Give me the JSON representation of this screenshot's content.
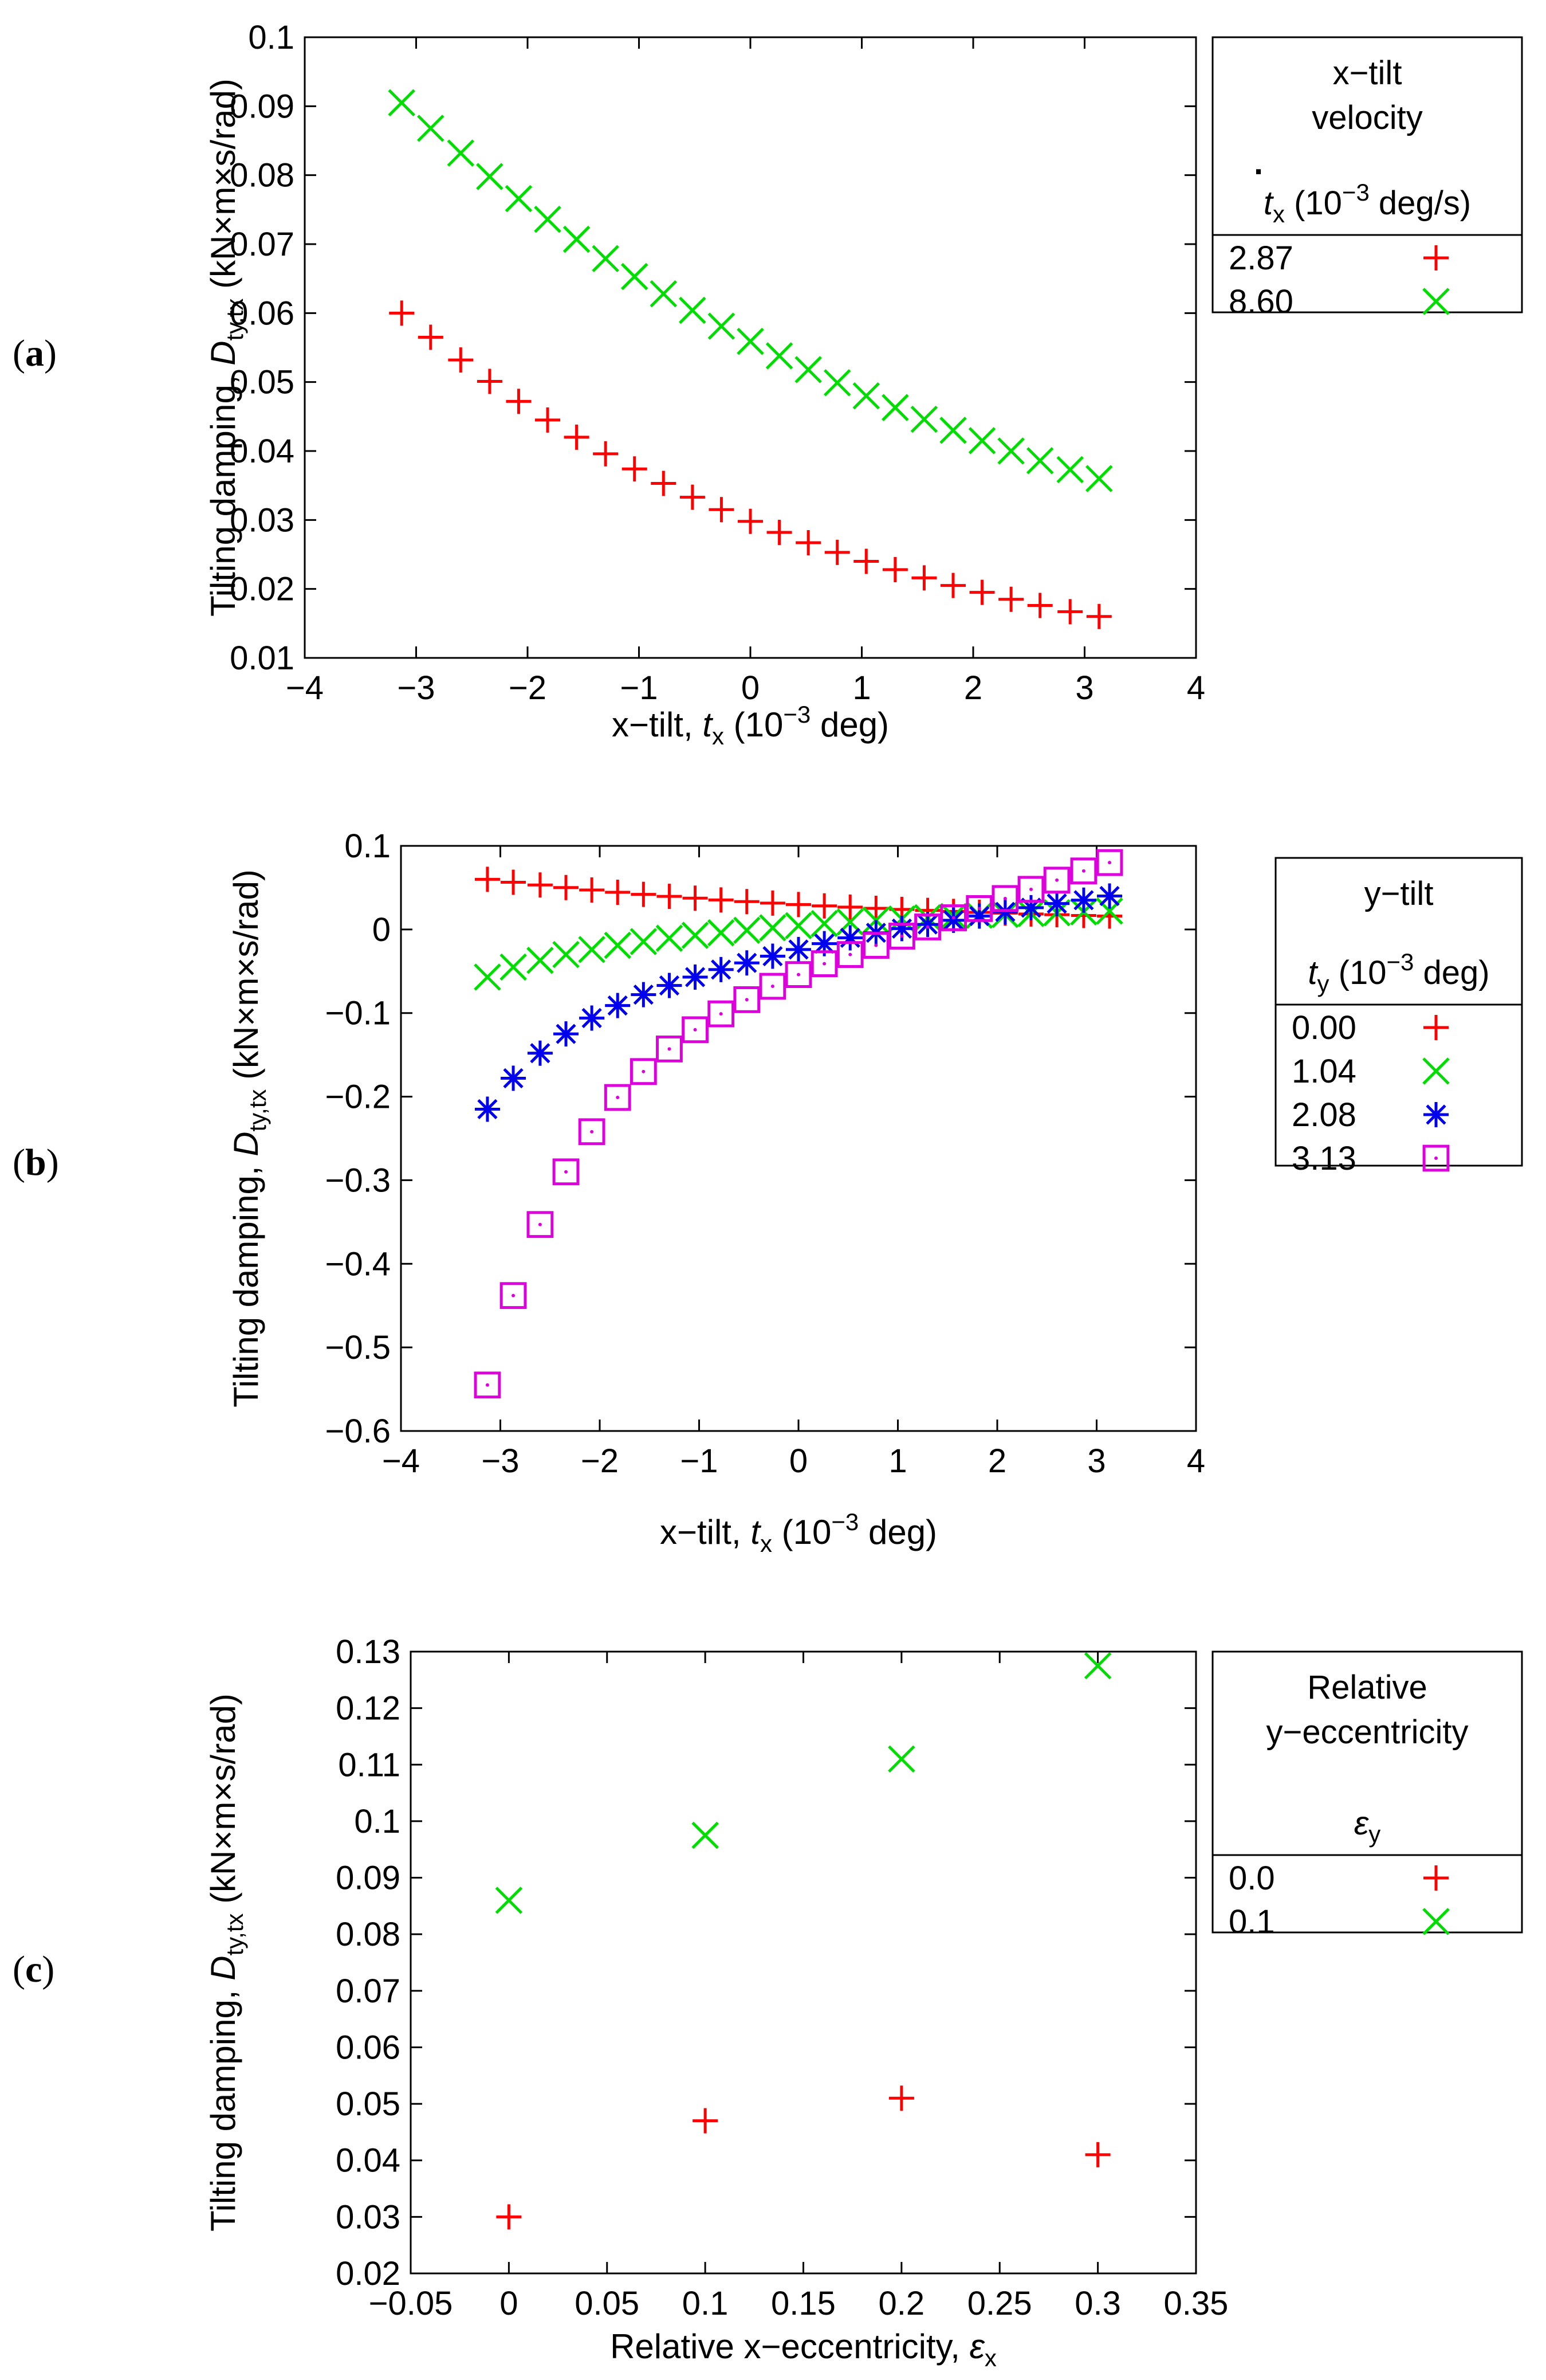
{
  "figure": {
    "panels": [
      {
        "label_open": "(",
        "label_letter": "a",
        "label_close": ")"
      },
      {
        "label_open": "(",
        "label_letter": "b",
        "label_close": ")"
      },
      {
        "label_open": "(",
        "label_letter": "c",
        "label_close": ")"
      }
    ]
  },
  "chart_data": [
    {
      "type": "scatter",
      "ylabel_pre": "Tilting damping, ",
      "ylabel_sym": "D",
      "ylabel_sub": "ty,tx",
      "ylabel_post": " (kN×m×s/rad)",
      "xlabel_pre": "x−tilt, ",
      "xlabel_sym": "t",
      "xlabel_sub": "x",
      "xlabel_post1": " (10",
      "xlabel_sup": "−3",
      "xlabel_post2": " deg)",
      "xlim": [
        -4,
        4
      ],
      "ylim": [
        0.01,
        0.1
      ],
      "xticks": [
        "−4",
        "−3",
        "−2",
        "−1",
        "0",
        "1",
        "2",
        "3",
        "4"
      ],
      "yticks": [
        "0.01",
        "0.02",
        "0.03",
        "0.04",
        "0.05",
        "0.06",
        "0.07",
        "0.08",
        "0.09",
        "0.1"
      ],
      "legend": {
        "position": "right, outside",
        "title_lines": [
          "x−tilt",
          "velocity"
        ],
        "var_dot": ".",
        "var_sym": "t",
        "var_sub": "x",
        "var_unit_pre": " (10",
        "var_unit_sup": "−3",
        "var_unit_post": " deg/s)"
      },
      "series": [
        {
          "name": "2.87",
          "marker": "plus",
          "color": "#ff0000",
          "x": [
            -3.13,
            -2.87,
            -2.6,
            -2.34,
            -2.08,
            -1.82,
            -1.56,
            -1.3,
            -1.04,
            -0.78,
            -0.52,
            -0.26,
            0.0,
            0.26,
            0.52,
            0.78,
            1.04,
            1.3,
            1.56,
            1.82,
            2.08,
            2.34,
            2.6,
            2.87,
            3.13
          ],
          "y": [
            0.06,
            0.0565,
            0.0532,
            0.0501,
            0.0472,
            0.0445,
            0.042,
            0.0396,
            0.0374,
            0.0353,
            0.0333,
            0.0315,
            0.0298,
            0.0282,
            0.0267,
            0.0253,
            0.024,
            0.0228,
            0.0216,
            0.0205,
            0.0195,
            0.0185,
            0.0176,
            0.0167,
            0.016
          ]
        },
        {
          "name": "8.60",
          "marker": "cross",
          "color": "#00dd00",
          "x": [
            -3.13,
            -2.87,
            -2.6,
            -2.34,
            -2.08,
            -1.82,
            -1.56,
            -1.3,
            -1.04,
            -0.78,
            -0.52,
            -0.26,
            0.0,
            0.26,
            0.52,
            0.78,
            1.04,
            1.3,
            1.56,
            1.82,
            2.08,
            2.34,
            2.6,
            2.87,
            3.13
          ],
          "y": [
            0.0905,
            0.0868,
            0.0832,
            0.0798,
            0.0766,
            0.0736,
            0.0707,
            0.0679,
            0.0653,
            0.0628,
            0.0604,
            0.0581,
            0.0559,
            0.0538,
            0.0518,
            0.0499,
            0.048,
            0.0463,
            0.0446,
            0.043,
            0.0415,
            0.04,
            0.0386,
            0.0373,
            0.036
          ]
        }
      ]
    },
    {
      "type": "scatter",
      "ylabel_pre": "Tilting damping, ",
      "ylabel_sym": "D",
      "ylabel_sub": "ty,tx",
      "ylabel_post": " (kN×m×s/rad)",
      "xlabel_pre": "x−tilt, ",
      "xlabel_sym": "t",
      "xlabel_sub": "x",
      "xlabel_post1": " (10",
      "xlabel_sup": "−3",
      "xlabel_post2": " deg)",
      "xlim": [
        -4,
        4
      ],
      "ylim": [
        -0.6,
        0.1
      ],
      "xticks": [
        "−4",
        "−3",
        "−2",
        "−1",
        "0",
        "1",
        "2",
        "3",
        "4"
      ],
      "yticks": [
        "−0.6",
        "−0.5",
        "−0.4",
        "−0.3",
        "−0.2",
        "−0.1",
        "0",
        "0.1"
      ],
      "legend": {
        "position": "right, outside",
        "title_lines": [
          "y−tilt"
        ],
        "var_dot": "",
        "var_sym": "t",
        "var_sub": "y",
        "var_unit_pre": " (10",
        "var_unit_sup": "−3",
        "var_unit_post": " deg)"
      },
      "series": [
        {
          "name": "0.00",
          "marker": "plus",
          "color": "#ff0000",
          "x": [
            -3.13,
            -2.87,
            -2.6,
            -2.34,
            -2.08,
            -1.82,
            -1.56,
            -1.3,
            -1.04,
            -0.78,
            -0.52,
            -0.26,
            0.0,
            0.26,
            0.52,
            0.78,
            1.04,
            1.3,
            1.56,
            1.82,
            2.08,
            2.34,
            2.6,
            2.87,
            3.13
          ],
          "y": [
            0.06,
            0.0565,
            0.0532,
            0.0501,
            0.0472,
            0.0445,
            0.042,
            0.0396,
            0.0374,
            0.0353,
            0.0333,
            0.0315,
            0.0298,
            0.0282,
            0.0267,
            0.0253,
            0.024,
            0.0228,
            0.0216,
            0.0205,
            0.0195,
            0.0185,
            0.0176,
            0.0167,
            0.016
          ]
        },
        {
          "name": "1.04",
          "marker": "cross",
          "color": "#00dd00",
          "x": [
            -3.13,
            -2.87,
            -2.6,
            -2.34,
            -2.08,
            -1.82,
            -1.56,
            -1.3,
            -1.04,
            -0.78,
            -0.52,
            -0.26,
            0.0,
            0.26,
            0.52,
            0.78,
            1.04,
            1.3,
            1.56,
            1.82,
            2.08,
            2.34,
            2.6,
            2.87,
            3.13
          ],
          "y": [
            -0.057,
            -0.045,
            -0.037,
            -0.03,
            -0.024,
            -0.019,
            -0.0145,
            -0.0105,
            -0.007,
            -0.004,
            -0.001,
            0.002,
            0.0045,
            0.007,
            0.009,
            0.011,
            0.0125,
            0.014,
            0.0155,
            0.017,
            0.018,
            0.019,
            0.02,
            0.021,
            0.022
          ]
        },
        {
          "name": "2.08",
          "marker": "star",
          "color": "#0000ee",
          "x": [
            -3.13,
            -2.87,
            -2.6,
            -2.34,
            -2.08,
            -1.82,
            -1.56,
            -1.3,
            -1.04,
            -0.78,
            -0.52,
            -0.26,
            0.0,
            0.26,
            0.52,
            0.78,
            1.04,
            1.3,
            1.56,
            1.82,
            2.08,
            2.34,
            2.6,
            2.87,
            3.13
          ],
          "y": [
            -0.215,
            -0.178,
            -0.148,
            -0.125,
            -0.106,
            -0.091,
            -0.078,
            -0.067,
            -0.057,
            -0.048,
            -0.04,
            -0.032,
            -0.024,
            -0.017,
            -0.01,
            -0.004,
            0.001,
            0.006,
            0.011,
            0.016,
            0.021,
            0.026,
            0.031,
            0.035,
            0.04
          ]
        },
        {
          "name": "3.13",
          "marker": "square",
          "color": "#dd00dd",
          "x": [
            -3.13,
            -2.87,
            -2.6,
            -2.34,
            -2.08,
            -1.82,
            -1.56,
            -1.3,
            -1.04,
            -0.78,
            -0.52,
            -0.26,
            0.0,
            0.26,
            0.52,
            0.78,
            1.04,
            1.3,
            1.56,
            1.82,
            2.08,
            2.34,
            2.6,
            2.87,
            3.13
          ],
          "y": [
            -0.545,
            -0.438,
            -0.353,
            -0.29,
            -0.242,
            -0.201,
            -0.17,
            -0.143,
            -0.12,
            -0.101,
            -0.084,
            -0.068,
            -0.054,
            -0.041,
            -0.03,
            -0.019,
            -0.008,
            0.003,
            0.014,
            0.025,
            0.037,
            0.048,
            0.059,
            0.07,
            0.08
          ]
        }
      ]
    },
    {
      "type": "scatter",
      "ylabel_pre": "Tilting damping, ",
      "ylabel_sym": "D",
      "ylabel_sub": "ty,tx",
      "ylabel_post": " (kN×m×s/rad)",
      "xlabel_pre": "Relative x−eccentricity, ",
      "xlabel_sym": "ε",
      "xlabel_sub": "x",
      "xlabel_post1": "",
      "xlabel_sup": "",
      "xlabel_post2": "",
      "xlim": [
        -0.05,
        0.35
      ],
      "ylim": [
        0.02,
        0.13
      ],
      "xticks": [
        "−0.05",
        "0",
        "0.05",
        "0.1",
        "0.15",
        "0.2",
        "0.25",
        "0.3",
        "0.35"
      ],
      "yticks": [
        "0.02",
        "0.03",
        "0.04",
        "0.05",
        "0.06",
        "0.07",
        "0.08",
        "0.09",
        "0.1",
        "0.11",
        "0.12",
        "0.13"
      ],
      "legend": {
        "position": "right, outside",
        "title_lines": [
          "Relative",
          "y−eccentricity"
        ],
        "var_dot": "",
        "var_sym": "ε",
        "var_sub": "y",
        "var_unit_pre": "",
        "var_unit_sup": "",
        "var_unit_post": ""
      },
      "series": [
        {
          "name": "0.0",
          "marker": "plus",
          "color": "#ff0000",
          "x": [
            0.0,
            0.1,
            0.2,
            0.3
          ],
          "y": [
            0.03,
            0.047,
            0.051,
            0.041
          ]
        },
        {
          "name": "0.1",
          "marker": "cross",
          "color": "#00dd00",
          "x": [
            0.0,
            0.1,
            0.2,
            0.3
          ],
          "y": [
            0.086,
            0.0975,
            0.111,
            0.1275
          ]
        }
      ]
    }
  ]
}
